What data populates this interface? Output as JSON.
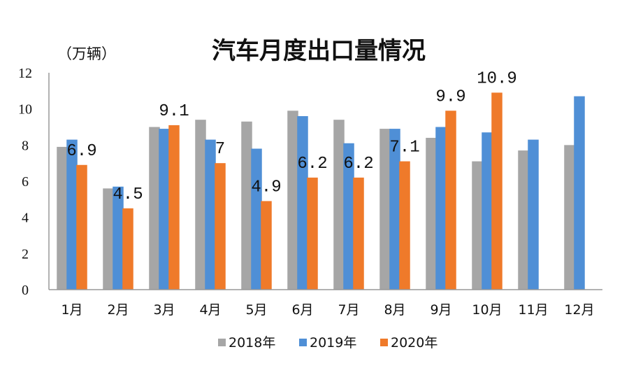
{
  "chart_data": {
    "type": "bar",
    "title": "汽车月度出口量情况",
    "unit_label": "（万辆）",
    "categories": [
      "1月",
      "2月",
      "3月",
      "4月",
      "5月",
      "6月",
      "7月",
      "8月",
      "9月",
      "10月",
      "11月",
      "12月"
    ],
    "series": [
      {
        "name": "2018年",
        "color": "#a6a6a6",
        "values": [
          7.9,
          5.6,
          9.0,
          9.4,
          9.3,
          9.9,
          9.4,
          8.9,
          8.4,
          7.1,
          7.7,
          8.0
        ]
      },
      {
        "name": "2019年",
        "color": "#4f8fd6",
        "values": [
          8.3,
          5.7,
          8.9,
          8.3,
          7.8,
          9.6,
          8.1,
          8.9,
          9.0,
          8.7,
          8.3,
          10.7
        ]
      },
      {
        "name": "2020年",
        "color": "#ef7a2a",
        "values": [
          6.9,
          4.5,
          9.1,
          7.0,
          4.9,
          6.2,
          6.2,
          7.1,
          9.9,
          10.9,
          null,
          null
        ]
      }
    ],
    "data_labels": [
      "6.9",
      "4.5",
      "9.1",
      "7",
      "4.9",
      "6.2",
      "6.2",
      "7.1",
      "9.9",
      "10.9"
    ],
    "yticks": [
      "0",
      "2",
      "4",
      "6",
      "8",
      "10",
      "12"
    ],
    "ylim": [
      0,
      12
    ],
    "grid": false,
    "legend_position": "bottom"
  }
}
